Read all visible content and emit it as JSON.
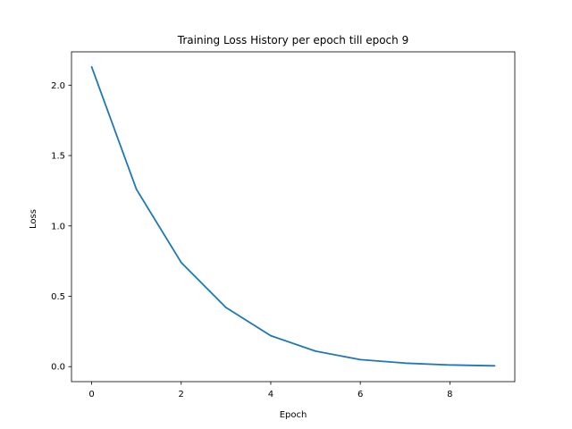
{
  "chart_data": {
    "type": "line",
    "title": "Training Loss History per epoch till epoch 9",
    "xlabel": "Epoch",
    "ylabel": "Loss",
    "xlim": [
      -0.45,
      9.45
    ],
    "ylim": [
      -0.1065,
      2.237
    ],
    "x_ticks": [
      0,
      2,
      4,
      6,
      8
    ],
    "y_ticks": [
      0.0,
      0.5,
      1.0,
      1.5,
      2.0
    ],
    "x_tick_labels": [
      "0",
      "2",
      "4",
      "6",
      "8"
    ],
    "y_tick_labels": [
      "0.0",
      "0.5",
      "1.0",
      "1.5",
      "2.0"
    ],
    "grid": false,
    "series": [
      {
        "x": [
          0,
          1,
          2,
          3,
          4,
          5,
          6,
          7,
          8,
          9
        ],
        "values": [
          2.13,
          1.26,
          0.74,
          0.42,
          0.22,
          0.11,
          0.05,
          0.025,
          0.012,
          0.006
        ],
        "color": "#1f77b4"
      }
    ]
  }
}
